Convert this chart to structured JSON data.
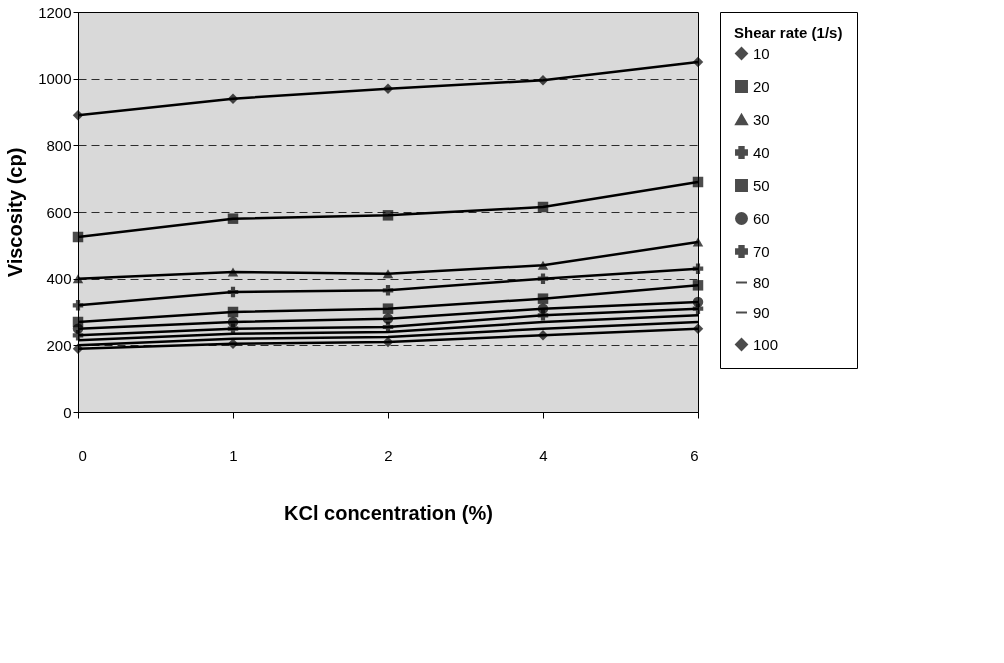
{
  "chart_data": {
    "type": "line",
    "xlabel": "KCl concentration (%)",
    "ylabel": "Viscosity (cp)",
    "legend_title": "Shear rate (1/s)",
    "legend": "right",
    "grid": "y",
    "line_style": "solid",
    "categories": [
      "0",
      "1",
      "2",
      "4",
      "6"
    ],
    "ylim": [
      0,
      1200
    ],
    "yticks": [
      0,
      200,
      400,
      600,
      800,
      1000,
      1200
    ],
    "series": [
      {
        "name": "10",
        "color": "#000000",
        "marker": "diamond",
        "values": [
          890,
          940,
          970,
          995,
          1050
        ]
      },
      {
        "name": "20",
        "color": "#000000",
        "marker": "square",
        "values": [
          525,
          580,
          590,
          615,
          690
        ]
      },
      {
        "name": "30",
        "color": "#000000",
        "marker": "triangle",
        "values": [
          400,
          420,
          415,
          440,
          510
        ]
      },
      {
        "name": "40",
        "color": "#000000",
        "marker": "cross",
        "values": [
          320,
          360,
          365,
          400,
          430
        ]
      },
      {
        "name": "50",
        "color": "#000000",
        "marker": "square",
        "values": [
          270,
          300,
          310,
          340,
          380
        ]
      },
      {
        "name": "60",
        "color": "#000000",
        "marker": "circle",
        "values": [
          250,
          270,
          280,
          310,
          330
        ]
      },
      {
        "name": "70",
        "color": "#000000",
        "marker": "cross",
        "values": [
          230,
          250,
          255,
          290,
          310
        ]
      },
      {
        "name": "80",
        "color": "#000000",
        "marker": "none",
        "values": [
          215,
          235,
          240,
          270,
          290
        ]
      },
      {
        "name": "90",
        "color": "#000000",
        "marker": "none",
        "values": [
          200,
          220,
          225,
          250,
          270
        ]
      },
      {
        "name": "100",
        "color": "#000000",
        "marker": "diamond",
        "values": [
          190,
          205,
          210,
          230,
          250
        ]
      }
    ]
  }
}
